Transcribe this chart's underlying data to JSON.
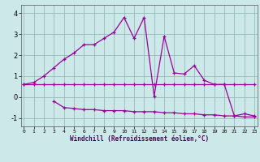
{
  "xlabel": "Windchill (Refroidissement éolien,°C)",
  "background_color": "#cce8e8",
  "grid_color": "#99bbbb",
  "line_color": "#990099",
  "x": [
    0,
    1,
    2,
    3,
    4,
    5,
    6,
    7,
    8,
    9,
    10,
    11,
    12,
    13,
    14,
    15,
    16,
    17,
    18,
    19,
    20,
    21,
    22,
    23
  ],
  "line1": [
    0.6,
    0.7,
    1.0,
    1.4,
    1.8,
    2.1,
    2.5,
    2.5,
    2.8,
    3.1,
    3.8,
    2.8,
    3.8,
    0.05,
    2.9,
    1.15,
    1.1,
    1.5,
    0.8,
    0.6,
    0.6,
    -0.9,
    -0.8,
    -0.9
  ],
  "line2": [
    0.6,
    0.6,
    0.6,
    0.6,
    0.6,
    0.6,
    0.6,
    0.6,
    0.6,
    0.6,
    0.6,
    0.6,
    0.6,
    0.6,
    0.6,
    0.6,
    0.6,
    0.6,
    0.6,
    0.6,
    0.6,
    0.6,
    0.6,
    0.6
  ],
  "line3_x": [
    3,
    4,
    5,
    6,
    7,
    8,
    9,
    10,
    11,
    12,
    13,
    14,
    15,
    16,
    17,
    18,
    19,
    20,
    21,
    22,
    23
  ],
  "line3": [
    -0.2,
    -0.5,
    -0.55,
    -0.6,
    -0.6,
    -0.65,
    -0.65,
    -0.65,
    -0.7,
    -0.7,
    -0.7,
    -0.75,
    -0.75,
    -0.8,
    -0.8,
    -0.85,
    -0.85,
    -0.9,
    -0.9,
    -0.95,
    -0.95
  ],
  "ylim": [
    -1.4,
    4.4
  ],
  "yticks": [
    -1,
    0,
    1,
    2,
    3,
    4
  ],
  "xticks": [
    0,
    1,
    2,
    3,
    4,
    5,
    6,
    7,
    8,
    9,
    10,
    11,
    12,
    13,
    14,
    15,
    16,
    17,
    18,
    19,
    20,
    21,
    22,
    23
  ],
  "xlim": [
    -0.3,
    23.3
  ]
}
